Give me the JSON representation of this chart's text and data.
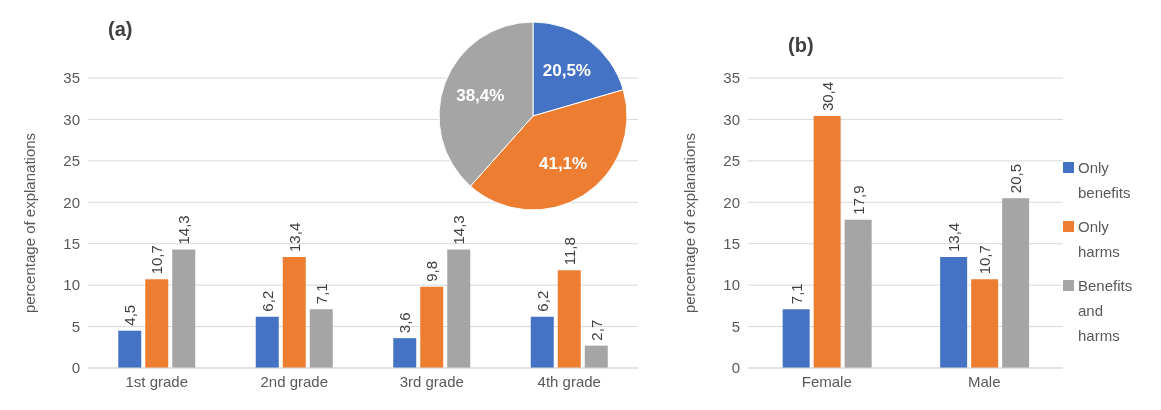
{
  "chart_data": [
    {
      "type": "bar",
      "title": "(a)",
      "ylabel": "percentage of explanations",
      "categories": [
        "1st grade",
        "2nd grade",
        "3rd grade",
        "4th grade"
      ],
      "series": [
        {
          "color": "#4472c4",
          "values": [
            4.5,
            6.2,
            3.6,
            6.2
          ],
          "value_labels": [
            "4,5",
            "6,2",
            "3,6",
            "6,2"
          ]
        },
        {
          "color": "#ed7d31",
          "values": [
            10.7,
            13.4,
            9.8,
            11.8
          ],
          "value_labels": [
            "10,7",
            "13,4",
            "9,8",
            "11,8"
          ]
        },
        {
          "color": "#a5a5a5",
          "values": [
            14.3,
            7.1,
            14.3,
            2.7
          ],
          "value_labels": [
            "14,3",
            "7,1",
            "14,3",
            "2,7"
          ]
        }
      ],
      "ylim": [
        0,
        35
      ],
      "yticks": [
        0,
        5,
        10,
        15,
        20,
        25,
        30,
        35
      ],
      "grid": "y",
      "legend": false
    },
    {
      "type": "pie",
      "categories": [
        null,
        null,
        null
      ],
      "values": [
        20.5,
        41.1,
        38.4
      ],
      "colors": [
        "#4472c4",
        "#ed7d31",
        "#a5a5a5"
      ],
      "value_labels": [
        "20,5%",
        "41,1%",
        "38,4%"
      ]
    },
    {
      "type": "bar",
      "title": "(b)",
      "ylabel": "percentage of explanations",
      "categories": [
        "Female",
        "Male"
      ],
      "series": [
        {
          "name": "Only benefits",
          "color": "#4472c4",
          "values": [
            7.1,
            13.4
          ],
          "value_labels": [
            "7,1",
            "13,4"
          ]
        },
        {
          "name": "Only harms",
          "color": "#ed7d31",
          "values": [
            30.4,
            10.7
          ],
          "value_labels": [
            "30,4",
            "10,7"
          ]
        },
        {
          "name": "Benefits and harms",
          "color": "#a5a5a5",
          "values": [
            17.9,
            20.5
          ],
          "value_labels": [
            "17,9",
            "20,5"
          ]
        }
      ],
      "ylim": [
        0,
        35
      ],
      "yticks": [
        0,
        5,
        10,
        15,
        20,
        25,
        30,
        35
      ],
      "grid": "y",
      "legend": "right"
    }
  ]
}
